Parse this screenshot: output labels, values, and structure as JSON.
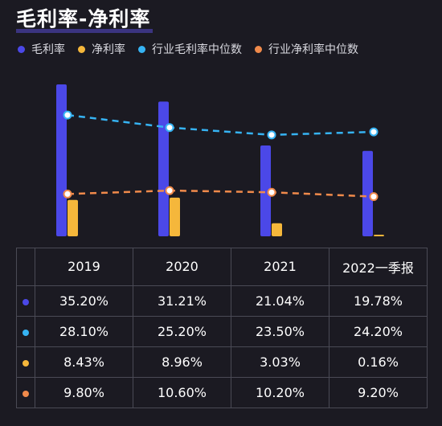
{
  "title": "毛利率-净利率",
  "colors": {
    "gross": "#4b48e8",
    "net": "#f5b73b",
    "ind_gross": "#36b3f3",
    "ind_net": "#f08a4b"
  },
  "chart_data": {
    "type": "bar",
    "categories": [
      "2019",
      "2020",
      "2021",
      "2022一季报"
    ],
    "series": [
      {
        "name": "毛利率",
        "kind": "bar",
        "color": "#4b48e8",
        "values": [
          35.2,
          31.21,
          21.04,
          19.78
        ]
      },
      {
        "name": "净利率",
        "kind": "bar",
        "color": "#f5b73b",
        "values": [
          8.43,
          8.96,
          3.03,
          0.16
        ]
      },
      {
        "name": "行业毛利率中位数",
        "kind": "line",
        "style": "dashed",
        "color": "#36b3f3",
        "values": [
          28.1,
          25.2,
          23.5,
          24.2
        ]
      },
      {
        "name": "行业净利率中位数",
        "kind": "line",
        "style": "dashed",
        "color": "#f08a4b",
        "values": [
          9.8,
          10.6,
          10.2,
          9.2
        ]
      }
    ],
    "ylim": [
      0,
      35.2
    ],
    "grid": false,
    "legend": "top-left"
  },
  "table": {
    "headers": [
      "2019",
      "2020",
      "2021",
      "2022一季报"
    ],
    "rows": [
      {
        "color": "#4b48e8",
        "cells": [
          "35.20%",
          "31.21%",
          "21.04%",
          "19.78%"
        ]
      },
      {
        "color": "#36b3f3",
        "cells": [
          "28.10%",
          "25.20%",
          "23.50%",
          "24.20%"
        ]
      },
      {
        "color": "#f5b73b",
        "cells": [
          "8.43%",
          "8.96%",
          "3.03%",
          "0.16%"
        ]
      },
      {
        "color": "#f08a4b",
        "cells": [
          "9.80%",
          "10.60%",
          "10.20%",
          "9.20%"
        ]
      }
    ]
  }
}
